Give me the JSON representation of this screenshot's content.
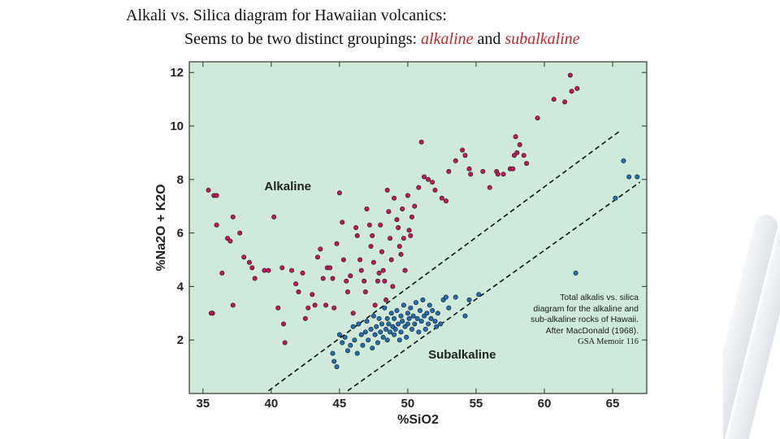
{
  "slide": {
    "title_line1": "Alkali vs. Silica diagram for Hawaiian volcanics:",
    "title_line2_prefix": "Seems to be two distinct groupings: ",
    "title_alkaline": "alkaline",
    "title_and": " and ",
    "title_subalkaline": "subalkaline",
    "highlight_color": "#c0272d"
  },
  "caption": {
    "text": "Total alkalis vs. silica diagram for the alkaline and sub-alkaline rocks of Hawaii. After MacDonald (1968).",
    "source": "GSA Memoir 116"
  },
  "chart_data": {
    "type": "scatter",
    "title": "",
    "xlabel": "%SiO2",
    "ylabel": "%Na2O + K2O",
    "xlim": [
      34,
      67.5
    ],
    "ylim": [
      0,
      12.4
    ],
    "x_ticks": [
      "35",
      "40",
      "45",
      "50",
      "55",
      "60",
      "65"
    ],
    "y_ticks": [
      "2",
      "4",
      "6",
      "8",
      "10",
      "12"
    ],
    "grid": false,
    "background_color": "#cfeadb",
    "annotations": [
      {
        "text": "Alkaline",
        "x": 39.5,
        "y": 7.6
      },
      {
        "text": "Subalkaline",
        "x": 51.5,
        "y": 1.3
      }
    ],
    "divider_lines": [
      {
        "name": "alkaline-subalkaline-boundary",
        "x1": 39.8,
        "y1": 0.1,
        "x2": 65.5,
        "y2": 9.8
      },
      {
        "name": "lower-dashed-line",
        "x1": 45.6,
        "y1": 0.1,
        "x2": 67,
        "y2": 7.9
      }
    ],
    "series": [
      {
        "name": "Alkaline",
        "color": "#c2185b",
        "points": [
          [
            35.4,
            7.6
          ],
          [
            35.8,
            7.4
          ],
          [
            36.0,
            7.4
          ],
          [
            36.0,
            6.3
          ],
          [
            36.4,
            4.5
          ],
          [
            36.8,
            5.8
          ],
          [
            37.0,
            5.7
          ],
          [
            37.2,
            6.6
          ],
          [
            37.2,
            3.3
          ],
          [
            35.7,
            3.0
          ],
          [
            35.6,
            3.0
          ],
          [
            37.7,
            6.0
          ],
          [
            38.0,
            5.1
          ],
          [
            38.4,
            4.9
          ],
          [
            38.6,
            4.7
          ],
          [
            38.8,
            4.3
          ],
          [
            39.5,
            4.6
          ],
          [
            39.8,
            4.6
          ],
          [
            40.2,
            6.6
          ],
          [
            40.5,
            3.2
          ],
          [
            40.8,
            4.7
          ],
          [
            40.9,
            2.6
          ],
          [
            41.0,
            1.9
          ],
          [
            41.5,
            4.6
          ],
          [
            41.8,
            4.1
          ],
          [
            42.0,
            3.8
          ],
          [
            42.3,
            4.5
          ],
          [
            42.5,
            2.8
          ],
          [
            42.7,
            3.2
          ],
          [
            43.0,
            3.7
          ],
          [
            43.2,
            3.3
          ],
          [
            43.4,
            5.1
          ],
          [
            43.6,
            5.4
          ],
          [
            43.8,
            4.3
          ],
          [
            44.0,
            3.3
          ],
          [
            44.1,
            4.7
          ],
          [
            44.3,
            4.7
          ],
          [
            44.5,
            4.3
          ],
          [
            44.6,
            3.2
          ],
          [
            44.8,
            5.6
          ],
          [
            45.0,
            7.5
          ],
          [
            45.2,
            6.4
          ],
          [
            45.3,
            5.0
          ],
          [
            45.5,
            4.2
          ],
          [
            45.6,
            3.8
          ],
          [
            45.8,
            4.4
          ],
          [
            46.0,
            3.0
          ],
          [
            46.2,
            6.2
          ],
          [
            46.3,
            5.9
          ],
          [
            46.5,
            5.0
          ],
          [
            46.6,
            4.6
          ],
          [
            46.8,
            4.2
          ],
          [
            46.9,
            3.8
          ],
          [
            47.0,
            6.9
          ],
          [
            47.2,
            6.3
          ],
          [
            47.3,
            5.5
          ],
          [
            47.4,
            5.9
          ],
          [
            47.5,
            4.9
          ],
          [
            47.6,
            3.3
          ],
          [
            47.8,
            4.2
          ],
          [
            47.9,
            4.5
          ],
          [
            48.0,
            6.3
          ],
          [
            48.1,
            5.3
          ],
          [
            48.2,
            4.6
          ],
          [
            48.3,
            4.2
          ],
          [
            48.4,
            3.5
          ],
          [
            48.5,
            7.6
          ],
          [
            48.6,
            6.8
          ],
          [
            48.7,
            5.8
          ],
          [
            48.8,
            5.0
          ],
          [
            48.9,
            4.0
          ],
          [
            49.0,
            7.3
          ],
          [
            49.2,
            6.5
          ],
          [
            49.3,
            6.2
          ],
          [
            49.4,
            5.5
          ],
          [
            49.5,
            5.2
          ],
          [
            49.6,
            6.9
          ],
          [
            49.7,
            5.8
          ],
          [
            49.8,
            4.6
          ],
          [
            50.0,
            7.4
          ],
          [
            50.1,
            6.1
          ],
          [
            50.2,
            5.9
          ],
          [
            50.3,
            6.6
          ],
          [
            50.5,
            7.0
          ],
          [
            50.8,
            7.7
          ],
          [
            51.0,
            9.4
          ],
          [
            51.2,
            8.1
          ],
          [
            51.5,
            8.0
          ],
          [
            51.8,
            7.9
          ],
          [
            52.0,
            7.6
          ],
          [
            52.5,
            7.3
          ],
          [
            52.8,
            7.2
          ],
          [
            53.0,
            8.3
          ],
          [
            53.5,
            8.7
          ],
          [
            54.0,
            9.1
          ],
          [
            54.2,
            8.9
          ],
          [
            54.5,
            8.4
          ],
          [
            54.6,
            8.2
          ],
          [
            55.5,
            8.3
          ],
          [
            56.0,
            7.7
          ],
          [
            56.5,
            8.3
          ],
          [
            56.6,
            8.2
          ],
          [
            57.0,
            8.2
          ],
          [
            57.5,
            8.4
          ],
          [
            57.7,
            8.4
          ],
          [
            57.8,
            8.9
          ],
          [
            57.9,
            9.6
          ],
          [
            58.0,
            9.0
          ],
          [
            58.2,
            9.3
          ],
          [
            58.5,
            8.9
          ],
          [
            58.7,
            8.6
          ],
          [
            59.5,
            10.3
          ],
          [
            60.7,
            11.0
          ],
          [
            61.5,
            10.9
          ],
          [
            61.9,
            11.9
          ],
          [
            62.0,
            11.3
          ],
          [
            62.4,
            11.4
          ]
        ]
      },
      {
        "name": "Subalkaline",
        "color": "#1f6fb2",
        "points": [
          [
            44.5,
            1.5
          ],
          [
            44.6,
            1.2
          ],
          [
            44.8,
            1.0
          ],
          [
            45.0,
            2.2
          ],
          [
            45.2,
            1.9
          ],
          [
            45.4,
            2.1
          ],
          [
            45.6,
            1.6
          ],
          [
            45.8,
            1.8
          ],
          [
            46.0,
            2.5
          ],
          [
            46.1,
            2.0
          ],
          [
            46.3,
            1.5
          ],
          [
            46.4,
            2.6
          ],
          [
            46.6,
            2.2
          ],
          [
            46.7,
            1.8
          ],
          [
            46.9,
            2.3
          ],
          [
            47.0,
            2.7
          ],
          [
            47.1,
            2.0
          ],
          [
            47.3,
            2.4
          ],
          [
            47.4,
            1.7
          ],
          [
            47.5,
            2.9
          ],
          [
            47.6,
            2.2
          ],
          [
            47.7,
            2.5
          ],
          [
            47.8,
            1.9
          ],
          [
            47.9,
            2.8
          ],
          [
            48.0,
            2.3
          ],
          [
            48.1,
            2.6
          ],
          [
            48.2,
            2.1
          ],
          [
            48.3,
            3.2
          ],
          [
            48.4,
            2.4
          ],
          [
            48.5,
            2.8
          ],
          [
            48.5,
            2.0
          ],
          [
            48.6,
            2.6
          ],
          [
            48.7,
            2.3
          ],
          [
            48.8,
            3.0
          ],
          [
            48.9,
            2.5
          ],
          [
            49.0,
            2.2
          ],
          [
            49.0,
            2.8
          ],
          [
            49.1,
            2.4
          ],
          [
            49.2,
            3.1
          ],
          [
            49.3,
            2.6
          ],
          [
            49.4,
            2.0
          ],
          [
            49.5,
            2.9
          ],
          [
            49.5,
            2.3
          ],
          [
            49.6,
            2.7
          ],
          [
            49.7,
            3.3
          ],
          [
            49.8,
            2.5
          ],
          [
            49.9,
            2.1
          ],
          [
            50.0,
            3.0
          ],
          [
            50.0,
            2.6
          ],
          [
            50.1,
            2.8
          ],
          [
            50.2,
            3.2
          ],
          [
            50.3,
            2.4
          ],
          [
            50.4,
            2.9
          ],
          [
            50.5,
            2.6
          ],
          [
            50.6,
            3.4
          ],
          [
            50.7,
            2.8
          ],
          [
            50.8,
            2.3
          ],
          [
            50.9,
            3.1
          ],
          [
            51.0,
            2.7
          ],
          [
            51.1,
            3.5
          ],
          [
            51.2,
            2.9
          ],
          [
            51.3,
            2.4
          ],
          [
            51.4,
            3.0
          ],
          [
            51.5,
            2.6
          ],
          [
            51.6,
            3.3
          ],
          [
            51.7,
            2.8
          ],
          [
            51.8,
            3.1
          ],
          [
            52.0,
            2.7
          ],
          [
            52.1,
            2.5
          ],
          [
            52.2,
            3.0
          ],
          [
            52.4,
            2.6
          ],
          [
            52.6,
            3.5
          ],
          [
            52.8,
            3.6
          ],
          [
            53.0,
            3.2
          ],
          [
            53.5,
            3.6
          ],
          [
            54.2,
            2.9
          ],
          [
            54.5,
            3.5
          ],
          [
            55.2,
            3.7
          ],
          [
            62.3,
            4.5
          ],
          [
            65.2,
            7.3
          ],
          [
            65.8,
            8.7
          ],
          [
            66.2,
            8.1
          ],
          [
            66.8,
            8.1
          ]
        ]
      }
    ]
  }
}
